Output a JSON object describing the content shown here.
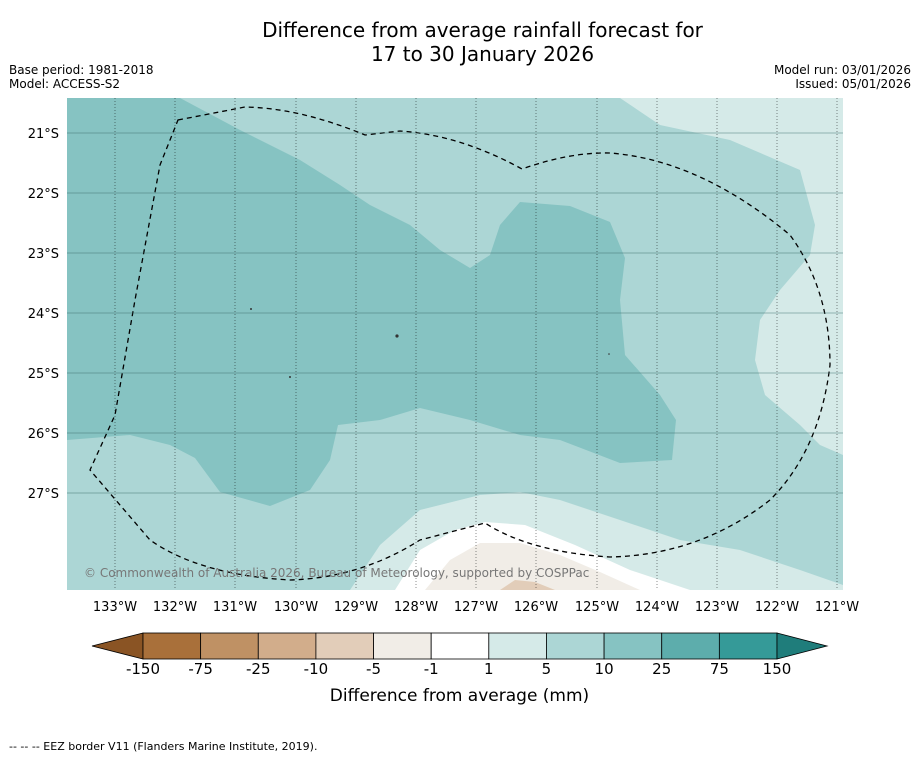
{
  "header": {
    "title_line1": "Difference from average rainfall forecast for",
    "title_line2": "17 to 30 January 2026",
    "base_period": "Base period: 1981-2018",
    "model": "Model: ACCESS-S2",
    "model_run": "Model run: 03/01/2026",
    "issued": "Issued: 05/01/2026"
  },
  "map": {
    "lat_labels": [
      "21°S",
      "22°S",
      "23°S",
      "24°S",
      "25°S",
      "26°S",
      "27°S"
    ],
    "lon_labels": [
      "133°W",
      "132°W",
      "131°W",
      "130°W",
      "129°W",
      "128°W",
      "127°W",
      "126°W",
      "125°W",
      "124°W",
      "123°W",
      "122°W",
      "121°W"
    ],
    "copyright": "© Commonwealth of Australia 2026, Bureau of Meteorology, supported by COSPPac"
  },
  "colorbar": {
    "labels": [
      "-150",
      "-75",
      "-25",
      "-10",
      "-5",
      "-1",
      "1",
      "5",
      "10",
      "25",
      "75",
      "150"
    ],
    "colors": [
      "#a9703a",
      "#bf9164",
      "#d2ad8b",
      "#e2cdb9",
      "#f1ede7",
      "#ffffff",
      "#d5eae8",
      "#acd6d5",
      "#86c3c2",
      "#5dadac",
      "#359a98"
    ],
    "under_color": "#8a5424",
    "over_color": "#1f7d7b",
    "title": "Difference from average (mm)"
  },
  "footnote": "--  --  -- EEZ border V11 (Flanders Marine Institute, 2019)."
}
